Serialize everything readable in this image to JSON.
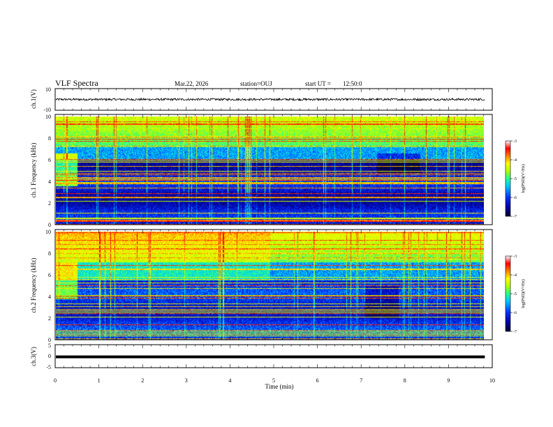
{
  "header": {
    "title": "VLF Spectra",
    "date": "Mar.22, 2026",
    "station": "station=OUJ",
    "start_label": "start UT =",
    "start_time": "12:50:0"
  },
  "chart_data": [
    {
      "type": "line",
      "name": "ch1-waveform",
      "ylabel": "ch.1(V)",
      "yticks": [
        "10",
        "-10"
      ],
      "ylim": [
        -10,
        10
      ],
      "xlim": [
        0,
        10
      ],
      "level": 0,
      "noise_amplitude": 1,
      "end_time": 9.83
    },
    {
      "type": "heatmap",
      "name": "ch1-spectrogram",
      "ylabel": "ch.1 Frequency (kHz)",
      "yticks": [
        "0",
        "2",
        "4",
        "6",
        "8",
        "10"
      ],
      "ylim": [
        0,
        10
      ],
      "xlim": [
        0,
        9.83
      ],
      "colorbar": {
        "label": "log(PSD)(V²/Hz)",
        "ticks": [
          "-3",
          "-4",
          "-5",
          "-6",
          "-7"
        ],
        "range": [
          -7,
          -3
        ]
      }
    },
    {
      "type": "heatmap",
      "name": "ch2-spectrogram",
      "ylabel": "ch.2 Frequency (kHz)",
      "yticks": [
        "0",
        "2",
        "4",
        "6",
        "8",
        "10"
      ],
      "ylim": [
        0,
        10
      ],
      "xlim": [
        0,
        9.83
      ],
      "colorbar": {
        "label": "log(PSD)(V²/Hz)",
        "ticks": [
          "-3",
          "-4",
          "-5",
          "-6",
          "-7"
        ],
        "range": [
          -7,
          -3
        ]
      }
    },
    {
      "type": "line",
      "name": "ch3-waveform",
      "ylabel": "ch.3(V)",
      "yticks": [
        "5",
        "0",
        "-5"
      ],
      "ylim": [
        -5,
        5
      ],
      "xlim": [
        0,
        10
      ],
      "level": -0.3,
      "end_time": 9.83
    }
  ],
  "xaxis": {
    "label": "Time (min)",
    "ticks": [
      "0",
      "1",
      "2",
      "3",
      "4",
      "5",
      "6",
      "7",
      "8",
      "9",
      "10"
    ]
  },
  "colors": {
    "colormap": [
      "#000030",
      "#0000a0",
      "#0030ff",
      "#00c8ff",
      "#20ff90",
      "#b0ff00",
      "#ffff00",
      "#ff8000",
      "#ff0000",
      "#ffffff"
    ]
  }
}
